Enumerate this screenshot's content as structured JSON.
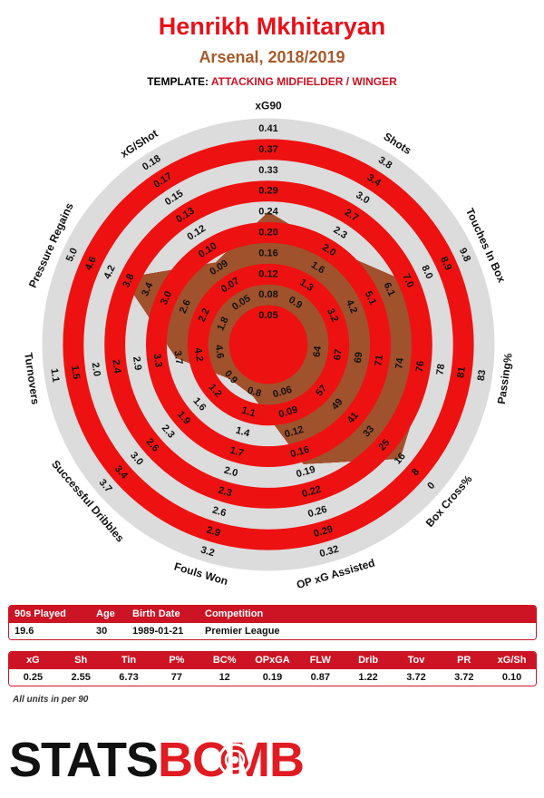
{
  "header": {
    "player": "Henrikh Mkhitaryan",
    "team_season": "Arsenal, 2018/2019",
    "template_label": "TEMPLATE:",
    "template_value": "ATTACKING MIDFIELDER / WINGER"
  },
  "colors": {
    "title": "#e8101a",
    "subtitle": "#a85a2a",
    "ring_red": "#ee1111",
    "ring_grey": "#dcdcdc",
    "polygon_fill": "#a0522d",
    "table_header": "#cc1424"
  },
  "chart_data": {
    "type": "radar",
    "title": "Henrikh Mkhitaryan",
    "rings": 10,
    "axes": [
      {
        "label": "xG90",
        "ticks": [
          "0.05",
          "0.08",
          "0.12",
          "0.16",
          "0.20",
          "0.24",
          "0.29",
          "0.33",
          "0.37",
          "0.41"
        ],
        "value": 0.25
      },
      {
        "label": "Shots",
        "ticks": [
          "0.9",
          "1.3",
          "1.6",
          "2.0",
          "2.3",
          "2.7",
          "3.0",
          "3.4",
          "3.8"
        ],
        "value": 2.55
      },
      {
        "label": "Touches In Box",
        "ticks": [
          "3.2",
          "4.2",
          "5.1",
          "6.1",
          "7.0",
          "8.0",
          "8.9",
          "9.8"
        ],
        "value": 6.73
      },
      {
        "label": "Passing%",
        "ticks": [
          "64",
          "67",
          "69",
          "71",
          "74",
          "76",
          "78",
          "81",
          "83"
        ],
        "value": 77
      },
      {
        "label": "Box Cross%",
        "ticks": [
          "57",
          "49",
          "41",
          "33",
          "25",
          "16",
          "8",
          "0"
        ],
        "value": 12
      },
      {
        "label": "OP xG Assisted",
        "ticks": [
          "0.06",
          "0.09",
          "0.12",
          "0.16",
          "0.19",
          "0.22",
          "0.26",
          "0.29",
          "0.32"
        ],
        "value": 0.19
      },
      {
        "label": "Fouls Won",
        "ticks": [
          "0.8",
          "1.1",
          "1.4",
          "1.7",
          "2.0",
          "2.3",
          "2.6",
          "2.9",
          "3.2"
        ],
        "value": 0.87
      },
      {
        "label": "Successful Dribbles",
        "ticks": [
          "0.9",
          "1.2",
          "1.6",
          "1.9",
          "2.3",
          "2.6",
          "3.0",
          "3.4",
          "3.7"
        ],
        "value": 1.22
      },
      {
        "label": "Turnovers",
        "ticks": [
          "4.6",
          "4.2",
          "3.7",
          "3.3",
          "2.9",
          "2.4",
          "2.0",
          "1.5",
          "1.1"
        ],
        "value": 3.72
      },
      {
        "label": "Pressure Regains",
        "ticks": [
          "1.8",
          "2.2",
          "2.6",
          "3.0",
          "3.4",
          "3.8",
          "4.2",
          "4.6",
          "5.0"
        ],
        "value": 3.72
      },
      {
        "label": "xG/Shot",
        "ticks": [
          "0.05",
          "0.07",
          "0.09",
          "0.10",
          "0.12",
          "0.13",
          "0.15",
          "0.17",
          "0.18"
        ],
        "value": 0.1
      }
    ],
    "polygon_rings": [
      5.5,
      4.6,
      6.4,
      6.9,
      7.5,
      5.1,
      1.7,
      1.6,
      3.6,
      6.8,
      3.8
    ]
  },
  "info_table": {
    "headers": [
      "90s Played",
      "Age",
      "Birth Date",
      "Competition"
    ],
    "values": [
      "19.6",
      "30",
      "1989-01-21",
      "Premier League"
    ]
  },
  "stats_table": {
    "headers": [
      "xG",
      "Sh",
      "Tin",
      "P%",
      "BC%",
      "OPxGA",
      "FLW",
      "Drib",
      "Tov",
      "PR",
      "xG/Sh"
    ],
    "values": [
      "0.25",
      "2.55",
      "6.73",
      "77",
      "12",
      "0.19",
      "0.87",
      "1.22",
      "3.72",
      "3.72",
      "0.10"
    ]
  },
  "footnote": "All units in per 90",
  "logo": {
    "part1": "STATS",
    "part2": "BOMB"
  }
}
